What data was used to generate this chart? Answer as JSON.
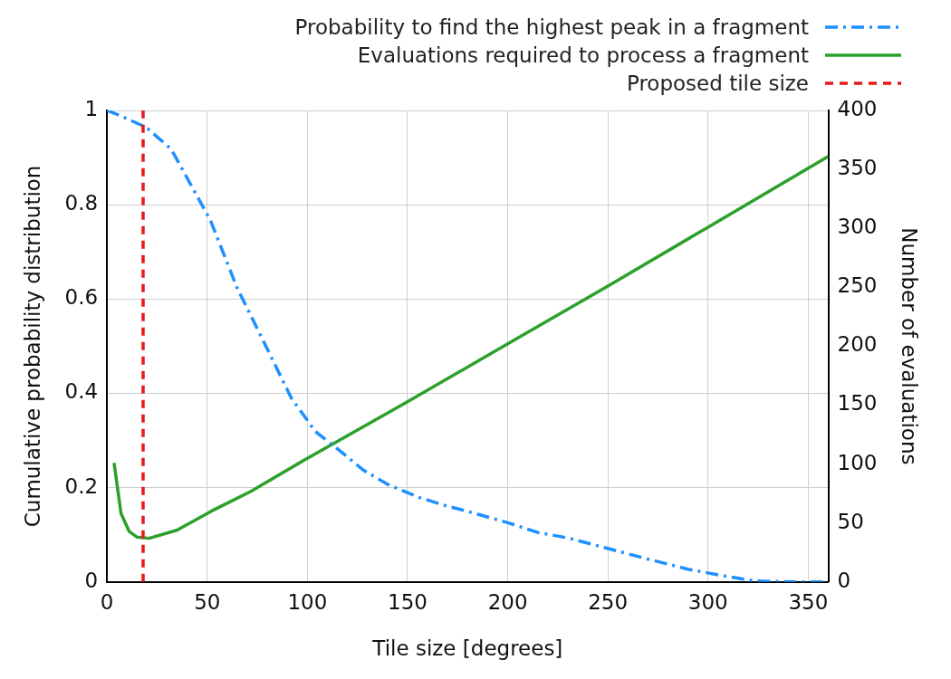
{
  "chart_data": {
    "type": "line",
    "xlabel": "Tile size [degrees]",
    "ylabel": "Cumulative probability distribution",
    "y2label": "Number of evaluations",
    "x": [
      0,
      6,
      19.6,
      32,
      45,
      51.7,
      65,
      80,
      92,
      104,
      114,
      128,
      141,
      156,
      168,
      178,
      199,
      215,
      230.5,
      249,
      269.5,
      290,
      306.5,
      323.7,
      344,
      358
    ],
    "series": [
      {
        "name": "Probability to find the highest peak in a fragment",
        "color": "#1e90ff",
        "line_style": "dashdot",
        "values": [
          1,
          0.99,
          0.964,
          0.918,
          0.818,
          0.766,
          0.623,
          0.494,
          0.39,
          0.319,
          0.286,
          0.237,
          0.205,
          0.179,
          0.163,
          0.152,
          0.127,
          0.105,
          0.093,
          0.072,
          0.049,
          0.027,
          0.014,
          0.002,
          0,
          0
        ]
      },
      {
        "name": "Evaluations required to process a fragment",
        "color": "#2ca02c",
        "line_style": "solid",
        "axis": "y2",
        "x": [
          3.5,
          7,
          11,
          15,
          21,
          35,
          52,
          72,
          99,
          148,
          200,
          250,
          300,
          360
        ],
        "values": [
          101,
          58,
          43,
          38,
          37,
          44,
          60,
          77,
          104,
          151,
          202,
          251,
          301,
          361
        ]
      }
    ],
    "ref_lines": [
      {
        "axis": "x",
        "value": 18,
        "label": "Proposed tile size",
        "color": "#e41a1c",
        "line_style": "dashed"
      }
    ],
    "xlim": [
      0,
      360
    ],
    "xticks": [
      0,
      50,
      100,
      150,
      200,
      250,
      300,
      350
    ],
    "ylim": [
      0,
      1
    ],
    "yticks": [
      0,
      0.2,
      0.4,
      0.6,
      0.8,
      1
    ],
    "y2lim": [
      0,
      400
    ],
    "y2ticks": [
      0,
      50,
      100,
      150,
      200,
      250,
      300,
      350,
      400
    ],
    "grid": true,
    "legend": "top right",
    "marker": "none"
  }
}
